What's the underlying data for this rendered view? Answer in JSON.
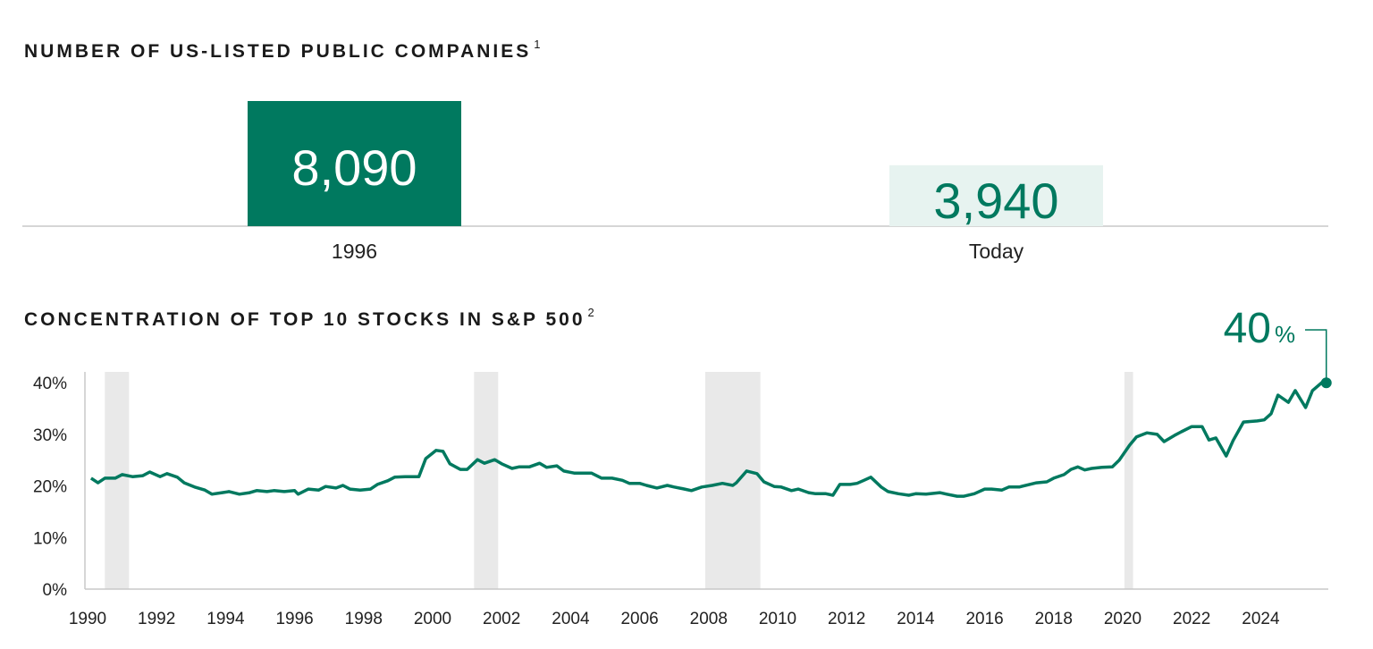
{
  "colors": {
    "accent": "#00795f",
    "accent_light": "#e7f3f0",
    "recession": "#e9e9e9",
    "axis": "#c8c8c8"
  },
  "chart_data": [
    {
      "type": "bar",
      "title": "NUMBER OF US-LISTED PUBLIC COMPANIES",
      "title_footnote": "1",
      "categories": [
        "1996",
        "Today"
      ],
      "series": [
        {
          "values": [
            8090,
            3940
          ]
        }
      ],
      "data_labels": [
        "8,090",
        "3,940"
      ]
    },
    {
      "type": "line",
      "title": "CONCENTRATION OF TOP 10 STOCKS IN S&P 500",
      "title_footnote": "2",
      "ylim": [
        0,
        40
      ],
      "yticks": [
        "0%",
        "10%",
        "20%",
        "30%",
        "40%"
      ],
      "ytick_values": [
        0,
        10,
        20,
        30,
        40
      ],
      "xlim": [
        1990,
        2025.9
      ],
      "xticks": [
        "1990",
        "1992",
        "1994",
        "1996",
        "1998",
        "2000",
        "2002",
        "2004",
        "2006",
        "2008",
        "2010",
        "2012",
        "2014",
        "2016",
        "2018",
        "2020",
        "2022",
        "2024"
      ],
      "grid": false,
      "recession_periods": [
        [
          1990.5,
          1991.2
        ],
        [
          2001.2,
          2001.9
        ],
        [
          2007.9,
          2009.5
        ],
        [
          2020.05,
          2020.3
        ]
      ],
      "end_label": {
        "value": "40",
        "unit": "%"
      },
      "points": [
        [
          1990.1,
          21.5
        ],
        [
          1990.3,
          20.6
        ],
        [
          1990.5,
          21.5
        ],
        [
          1990.8,
          21.5
        ],
        [
          1991.0,
          22.2
        ],
        [
          1991.3,
          21.8
        ],
        [
          1991.6,
          22.0
        ],
        [
          1991.8,
          22.7
        ],
        [
          1992.1,
          21.8
        ],
        [
          1992.3,
          22.4
        ],
        [
          1992.6,
          21.7
        ],
        [
          1992.8,
          20.6
        ],
        [
          1993.1,
          19.8
        ],
        [
          1993.4,
          19.2
        ],
        [
          1993.6,
          18.4
        ],
        [
          1993.9,
          18.7
        ],
        [
          1994.1,
          18.9
        ],
        [
          1994.4,
          18.4
        ],
        [
          1994.7,
          18.7
        ],
        [
          1994.9,
          19.1
        ],
        [
          1995.2,
          18.9
        ],
        [
          1995.4,
          19.1
        ],
        [
          1995.7,
          18.9
        ],
        [
          1996.0,
          19.1
        ],
        [
          1996.1,
          18.4
        ],
        [
          1996.4,
          19.4
        ],
        [
          1996.7,
          19.2
        ],
        [
          1996.9,
          19.9
        ],
        [
          1997.2,
          19.6
        ],
        [
          1997.4,
          20.1
        ],
        [
          1997.6,
          19.4
        ],
        [
          1997.9,
          19.2
        ],
        [
          1998.2,
          19.4
        ],
        [
          1998.4,
          20.3
        ],
        [
          1998.7,
          21.0
        ],
        [
          1998.9,
          21.7
        ],
        [
          1999.2,
          21.8
        ],
        [
          1999.5,
          21.8
        ],
        [
          1999.6,
          21.8
        ],
        [
          1999.8,
          25.3
        ],
        [
          2000.1,
          26.9
        ],
        [
          2000.3,
          26.7
        ],
        [
          2000.5,
          24.3
        ],
        [
          2000.8,
          23.2
        ],
        [
          2001.0,
          23.2
        ],
        [
          2001.3,
          25.1
        ],
        [
          2001.5,
          24.4
        ],
        [
          2001.8,
          25.1
        ],
        [
          2002.0,
          24.3
        ],
        [
          2002.3,
          23.4
        ],
        [
          2002.5,
          23.7
        ],
        [
          2002.8,
          23.7
        ],
        [
          2003.1,
          24.4
        ],
        [
          2003.3,
          23.6
        ],
        [
          2003.6,
          23.9
        ],
        [
          2003.8,
          22.9
        ],
        [
          2004.1,
          22.5
        ],
        [
          2004.4,
          22.5
        ],
        [
          2004.6,
          22.5
        ],
        [
          2004.9,
          21.5
        ],
        [
          2005.2,
          21.5
        ],
        [
          2005.5,
          21.1
        ],
        [
          2005.7,
          20.5
        ],
        [
          2006.0,
          20.5
        ],
        [
          2006.2,
          20.1
        ],
        [
          2006.5,
          19.6
        ],
        [
          2006.8,
          20.1
        ],
        [
          2007.0,
          19.8
        ],
        [
          2007.3,
          19.4
        ],
        [
          2007.5,
          19.1
        ],
        [
          2007.8,
          19.8
        ],
        [
          2008.1,
          20.1
        ],
        [
          2008.4,
          20.5
        ],
        [
          2008.7,
          20.1
        ],
        [
          2008.8,
          20.6
        ],
        [
          2009.1,
          22.9
        ],
        [
          2009.4,
          22.4
        ],
        [
          2009.6,
          20.8
        ],
        [
          2009.9,
          19.9
        ],
        [
          2010.1,
          19.8
        ],
        [
          2010.4,
          19.1
        ],
        [
          2010.6,
          19.4
        ],
        [
          2010.9,
          18.7
        ],
        [
          2011.1,
          18.5
        ],
        [
          2011.4,
          18.5
        ],
        [
          2011.6,
          18.2
        ],
        [
          2011.8,
          20.3
        ],
        [
          2012.1,
          20.3
        ],
        [
          2012.3,
          20.5
        ],
        [
          2012.5,
          21.1
        ],
        [
          2012.7,
          21.7
        ],
        [
          2013.0,
          19.8
        ],
        [
          2013.2,
          18.9
        ],
        [
          2013.5,
          18.5
        ],
        [
          2013.8,
          18.2
        ],
        [
          2014.0,
          18.5
        ],
        [
          2014.3,
          18.4
        ],
        [
          2014.7,
          18.7
        ],
        [
          2014.9,
          18.4
        ],
        [
          2015.2,
          18.0
        ],
        [
          2015.4,
          18.0
        ],
        [
          2015.7,
          18.5
        ],
        [
          2016.0,
          19.4
        ],
        [
          2016.2,
          19.4
        ],
        [
          2016.5,
          19.2
        ],
        [
          2016.7,
          19.8
        ],
        [
          2017.0,
          19.8
        ],
        [
          2017.3,
          20.3
        ],
        [
          2017.5,
          20.6
        ],
        [
          2017.8,
          20.8
        ],
        [
          2018.0,
          21.5
        ],
        [
          2018.3,
          22.2
        ],
        [
          2018.5,
          23.2
        ],
        [
          2018.7,
          23.7
        ],
        [
          2018.9,
          23.1
        ],
        [
          2019.1,
          23.4
        ],
        [
          2019.4,
          23.6
        ],
        [
          2019.7,
          23.7
        ],
        [
          2019.9,
          25.0
        ],
        [
          2020.2,
          27.9
        ],
        [
          2020.4,
          29.5
        ],
        [
          2020.7,
          30.3
        ],
        [
          2021.0,
          30.0
        ],
        [
          2021.2,
          28.6
        ],
        [
          2021.5,
          29.8
        ],
        [
          2021.7,
          30.5
        ],
        [
          2022.0,
          31.5
        ],
        [
          2022.3,
          31.5
        ],
        [
          2022.5,
          28.9
        ],
        [
          2022.7,
          29.3
        ],
        [
          2023.0,
          25.8
        ],
        [
          2023.2,
          28.8
        ],
        [
          2023.5,
          32.4
        ],
        [
          2023.9,
          32.6
        ],
        [
          2024.1,
          32.8
        ],
        [
          2024.3,
          34.0
        ],
        [
          2024.5,
          37.6
        ],
        [
          2024.8,
          36.2
        ],
        [
          2025.0,
          38.5
        ],
        [
          2025.3,
          35.2
        ],
        [
          2025.5,
          38.5
        ],
        [
          2025.8,
          40.2
        ],
        [
          2025.9,
          40.0
        ]
      ]
    }
  ]
}
